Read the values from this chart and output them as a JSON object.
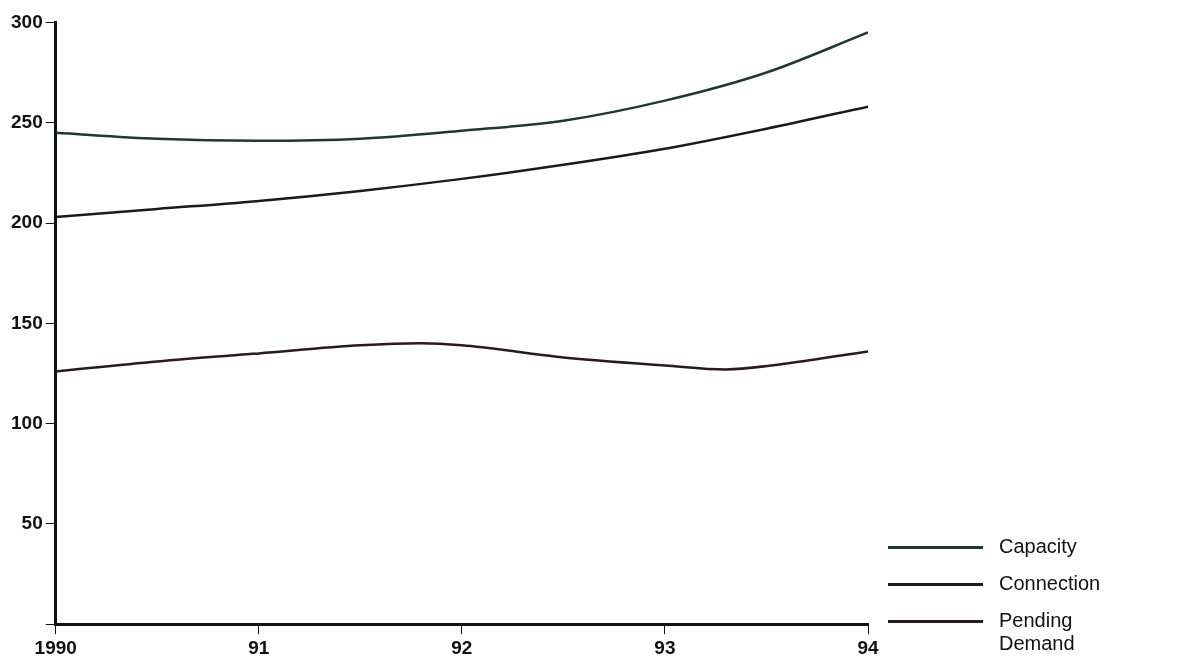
{
  "chart_data": {
    "type": "line",
    "x": [
      1990,
      1990.5,
      1991,
      1991.5,
      1992,
      1992.5,
      1993,
      1993.5,
      1994
    ],
    "xlim": [
      1990,
      1994
    ],
    "xticks": [
      {
        "value": 1990,
        "label": "1990"
      },
      {
        "value": 1991,
        "label": "91"
      },
      {
        "value": 1992,
        "label": "92"
      },
      {
        "value": 1993,
        "label": "93"
      },
      {
        "value": 1994,
        "label": "94"
      }
    ],
    "ylim": [
      0,
      300
    ],
    "yticks": [
      {
        "value": 0,
        "label": null
      },
      50,
      100,
      150,
      200,
      250,
      300
    ],
    "legend": "bottom right",
    "grid": false,
    "marker": "none",
    "line_style": "solid",
    "series": [
      {
        "name": "Capacity",
        "color": "#1f3a2c",
        "values": [
          245,
          242,
          241,
          242,
          246,
          251,
          261,
          275,
          295
        ]
      },
      {
        "name": "Connection",
        "color": "#1a1a1a",
        "values": [
          203,
          207,
          211,
          216,
          222,
          229,
          237,
          247,
          258
        ]
      },
      {
        "name": "Pending Demand",
        "color": "#2a1a1a",
        "x": [
          1990,
          1990.5,
          1991,
          1991.5,
          1991.8,
          1992,
          1992.5,
          1993,
          1993.3,
          1993.6,
          1994
        ],
        "values": [
          126,
          131,
          135,
          139,
          140,
          139,
          133,
          129,
          127,
          130,
          136
        ]
      }
    ]
  }
}
